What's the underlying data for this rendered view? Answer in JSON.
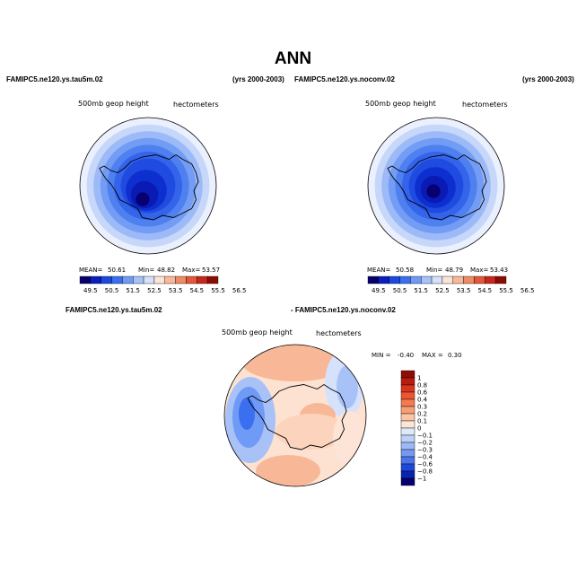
{
  "page_title": "ANN",
  "panels": {
    "top_left": {
      "case": "FAMIPC5.ne120.ys.tau5m.02",
      "years": "(yrs 2000-2003)",
      "variable": "500mb geop height",
      "units": "hectometers",
      "mean_label": "MEAN=",
      "mean": "50.61",
      "min_label": "Min=",
      "min": "48.82",
      "max_label": "Max=",
      "max": "53.57"
    },
    "top_right": {
      "case": "FAMIPC5.ne120.ys.noconv.02",
      "years": "(yrs 2000-2003)",
      "variable": "500mb geop height",
      "units": "hectometers",
      "mean_label": "MEAN=",
      "mean": "50.58",
      "min_label": "Min=",
      "min": "48.79",
      "max_label": "Max=",
      "max": "53.43"
    },
    "bottom": {
      "case_a": "FAMIPC5.ne120.ys.tau5m.02",
      "case_b": "- FAMIPC5.ne120.ys.noconv.02",
      "variable": "500mb geop height",
      "units": "hectometers",
      "min_label": "MIN =",
      "min": "-0.40",
      "max_label": "MAX =",
      "max": "0.30"
    }
  },
  "chart_data": [
    {
      "type": "heatmap",
      "projection": "south-polar-stereographic",
      "title": "500mb geop height",
      "units": "hectometers",
      "colorbar_orientation": "horizontal",
      "colorbar_levels": [
        49.5,
        50.5,
        51.5,
        52.5,
        53.5,
        54.5,
        55.5,
        56.5
      ],
      "colorbar_colors": [
        "#08006e",
        "#0a1fbf",
        "#1b48e0",
        "#3a6ff0",
        "#6f9af5",
        "#a8c2f8",
        "#d6e2fb",
        "#fde4d6",
        "#f8b898",
        "#f08a66",
        "#e4583a",
        "#c8281a",
        "#8e0c06"
      ],
      "contour_levels_hm": [
        49.0,
        49.5,
        50.0,
        50.5,
        51.0,
        51.5,
        52.0,
        52.5,
        53.0,
        53.5
      ],
      "contour_colors": [
        "#08006e",
        "#0a1ab5",
        "#0d2fd0",
        "#1f4be0",
        "#3464ea",
        "#4f80f0",
        "#739df4",
        "#9cbaf7",
        "#c6d7fa",
        "#eaf0fd"
      ],
      "mean": 50.61,
      "min": 48.82,
      "max": 53.57
    },
    {
      "type": "heatmap",
      "projection": "south-polar-stereographic",
      "title": "500mb geop height",
      "units": "hectometers",
      "colorbar_orientation": "horizontal",
      "colorbar_levels": [
        49.5,
        50.5,
        51.5,
        52.5,
        53.5,
        54.5,
        55.5,
        56.5
      ],
      "colorbar_colors": [
        "#08006e",
        "#0a1fbf",
        "#1b48e0",
        "#3a6ff0",
        "#6f9af5",
        "#a8c2f8",
        "#d6e2fb",
        "#fde4d6",
        "#f8b898",
        "#f08a66",
        "#e4583a",
        "#c8281a",
        "#8e0c06"
      ],
      "contour_levels_hm": [
        49.0,
        49.5,
        50.0,
        50.5,
        51.0,
        51.5,
        52.0,
        52.5,
        53.0,
        53.5
      ],
      "contour_colors": [
        "#08006e",
        "#0a1ab5",
        "#0d2fd0",
        "#1f4be0",
        "#3464ea",
        "#4f80f0",
        "#739df4",
        "#9cbaf7",
        "#c6d7fa",
        "#eaf0fd"
      ],
      "mean": 50.58,
      "min": 48.79,
      "max": 53.43
    },
    {
      "type": "heatmap",
      "projection": "south-polar-stereographic",
      "title": "500mb geop height",
      "units": "hectometers",
      "colorbar_orientation": "vertical",
      "colorbar_levels": [
        "1",
        "0.8",
        "0.6",
        "0.4",
        "0.3",
        "0.2",
        "0.1",
        "0",
        "−0.1",
        "−0.2",
        "−0.3",
        "−0.4",
        "−0.6",
        "−0.8",
        "−1"
      ],
      "colorbar_colors": [
        "#8e0c06",
        "#b81c0e",
        "#d8341e",
        "#ec5530",
        "#f47a50",
        "#f89e76",
        "#fbc4a6",
        "#fde6d6",
        "#dde8fb",
        "#bdd0f8",
        "#9cb8f5",
        "#7598f0",
        "#4a74e8",
        "#1f48d8",
        "#0a22b0",
        "#08006e"
      ],
      "min": -0.4,
      "max": 0.3
    }
  ]
}
